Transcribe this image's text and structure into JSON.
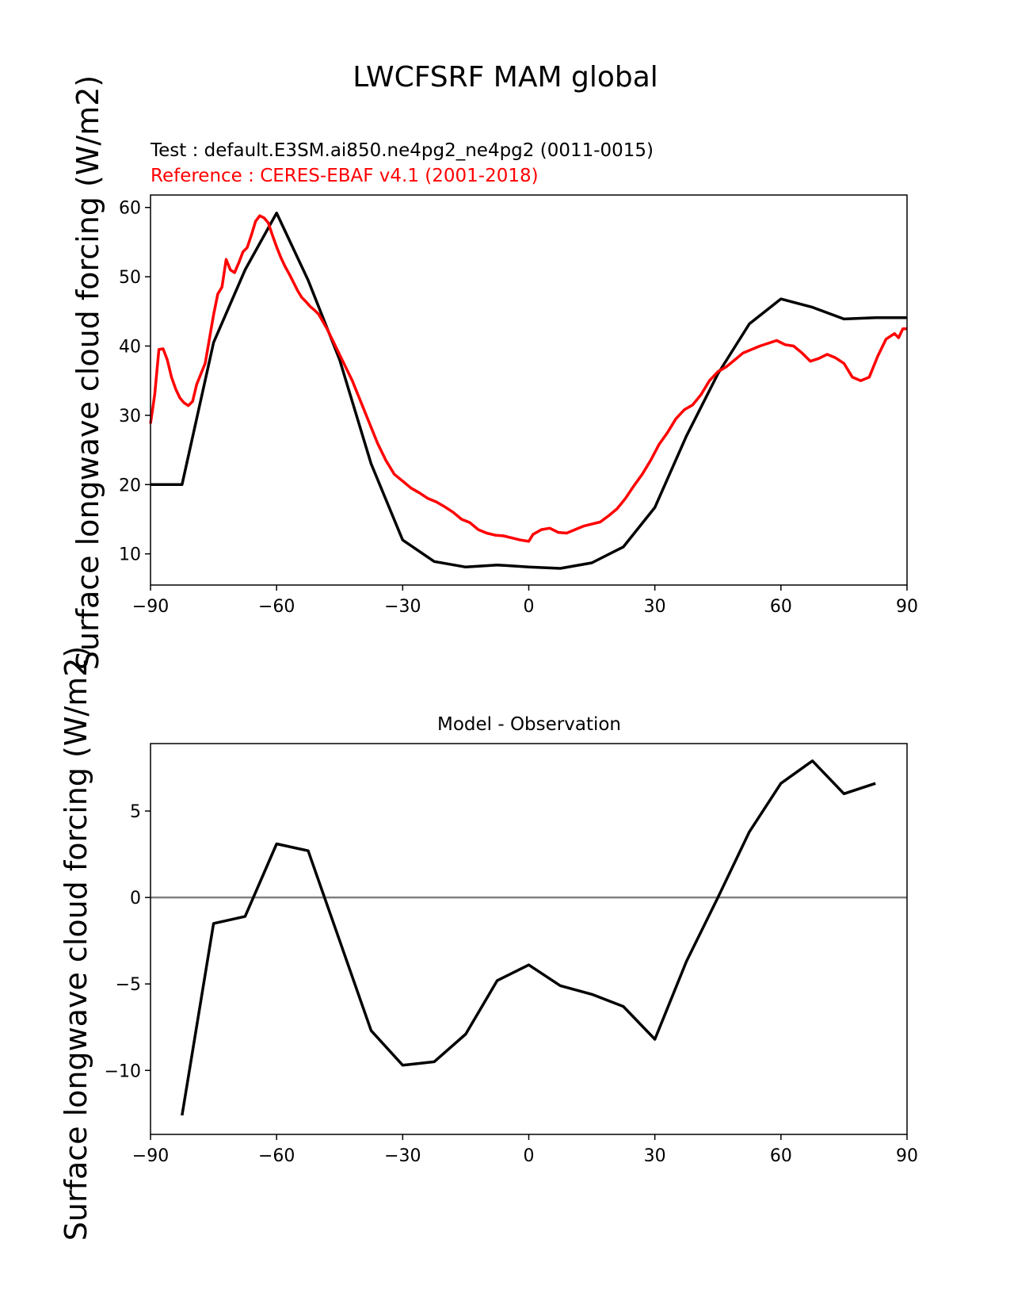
{
  "figure": {
    "title": "LWCFSRF MAM global",
    "test_label": "Test : default.E3SM.ai850.ne4pg2_ne4pg2 (0011-0015)",
    "reference_label": "Reference : CERES-EBAF v4.1 (2001-2018)",
    "ylabel": "Surface longwave cloud forcing (W/m2)"
  },
  "colors": {
    "test": "#000000",
    "reference": "#ff0000",
    "zero_line": "#808080",
    "frame": "#000000"
  },
  "chart_data": [
    {
      "type": "line",
      "title": "",
      "xlabel": "",
      "ylabel": "Surface longwave cloud forcing (W/m2)",
      "xlim": [
        -90,
        90
      ],
      "ylim": [
        5.5,
        61.8
      ],
      "xticks": [
        -90,
        -60,
        -30,
        0,
        30,
        60,
        90
      ],
      "xtick_labels": [
        "−90",
        "−60",
        "−30",
        "0",
        "30",
        "60",
        "90"
      ],
      "yticks": [
        10,
        20,
        30,
        40,
        50,
        60
      ],
      "ytick_labels": [
        "10",
        "20",
        "30",
        "40",
        "50",
        "60"
      ],
      "grid": false,
      "series": [
        {
          "name": "Test : default.E3SM.ai850.ne4pg2_ne4pg2 (0011-0015)",
          "color": "#000000",
          "x": [
            -90,
            -82.5,
            -75,
            -67.5,
            -60,
            -52.5,
            -45,
            -37.5,
            -30,
            -22.5,
            -15,
            -7.5,
            0,
            7.5,
            15,
            22.5,
            30,
            37.5,
            45,
            52.5,
            60,
            67.5,
            75,
            82.5,
            90
          ],
          "y": [
            20.0,
            20.0,
            40.5,
            51.0,
            59.2,
            49.5,
            38.0,
            23.0,
            12.0,
            8.9,
            8.1,
            8.4,
            8.1,
            7.9,
            8.7,
            11.0,
            16.7,
            27.0,
            36.0,
            43.2,
            46.8,
            45.6,
            43.9,
            44.1,
            44.1
          ]
        },
        {
          "name": "Reference : CERES-EBAF v4.1 (2001-2018)",
          "color": "#ff0000",
          "x": [
            -90,
            -89,
            -88,
            -87,
            -86,
            -85,
            -84,
            -83,
            -82,
            -81,
            -80,
            -79,
            -78,
            -77,
            -76,
            -75,
            -74,
            -73,
            -72,
            -71,
            -70,
            -69,
            -68,
            -67,
            -66,
            -65,
            -64,
            -63,
            -62,
            -61,
            -60,
            -59,
            -58,
            -57,
            -56,
            -55,
            -54,
            -53,
            -52,
            -51,
            -50,
            -48,
            -46,
            -44,
            -42,
            -40,
            -38,
            -36,
            -34,
            -32,
            -30,
            -28,
            -26,
            -24,
            -22,
            -20,
            -18,
            -16,
            -14,
            -12,
            -10,
            -8,
            -6,
            -4,
            -2,
            0,
            1,
            3,
            5,
            7,
            9,
            11,
            13,
            15,
            17,
            19,
            21,
            23,
            25,
            27,
            29,
            31,
            33,
            35,
            37,
            39,
            41,
            43,
            45,
            47,
            49,
            51,
            53,
            55,
            57,
            59,
            61,
            63,
            65,
            67,
            69,
            71,
            73,
            75,
            77,
            79,
            81,
            83,
            85,
            87,
            88,
            89,
            90
          ],
          "y": [
            28.8,
            33.0,
            39.5,
            39.6,
            38.0,
            35.5,
            33.8,
            32.5,
            31.8,
            31.4,
            32.0,
            34.5,
            36.0,
            37.5,
            41.0,
            44.5,
            47.5,
            48.5,
            52.5,
            51.0,
            50.6,
            52.0,
            53.6,
            54.2,
            56.0,
            58.0,
            58.8,
            58.5,
            57.8,
            56.0,
            54.3,
            52.8,
            51.5,
            50.4,
            49.2,
            48.0,
            47.0,
            46.4,
            45.7,
            45.2,
            44.6,
            42.5,
            40.0,
            37.5,
            35.0,
            32.0,
            29.0,
            26.0,
            23.5,
            21.5,
            20.5,
            19.5,
            18.8,
            18.0,
            17.5,
            16.8,
            16.0,
            15.0,
            14.5,
            13.5,
            13.0,
            12.7,
            12.6,
            12.3,
            12.0,
            11.8,
            12.8,
            13.5,
            13.7,
            13.1,
            13.0,
            13.5,
            14.0,
            14.3,
            14.6,
            15.5,
            16.5,
            18.0,
            19.8,
            21.5,
            23.5,
            25.8,
            27.5,
            29.5,
            30.8,
            31.5,
            33.0,
            35.0,
            36.3,
            37.0,
            38.0,
            39.0,
            39.5,
            40.0,
            40.4,
            40.8,
            40.2,
            40.0,
            39.0,
            37.8,
            38.2,
            38.8,
            38.3,
            37.5,
            35.5,
            35.0,
            35.5,
            38.5,
            41.0,
            41.8,
            41.2,
            42.5,
            42.5
          ]
        }
      ]
    },
    {
      "type": "line",
      "title": "Model - Observation",
      "xlabel": "",
      "ylabel": "Surface longwave cloud forcing (W/m2)",
      "xlim": [
        -90,
        90
      ],
      "ylim": [
        -13.7,
        8.9
      ],
      "xticks": [
        -90,
        -60,
        -30,
        0,
        30,
        60,
        90
      ],
      "xtick_labels": [
        "−90",
        "−60",
        "−30",
        "0",
        "30",
        "60",
        "90"
      ],
      "yticks": [
        -10,
        -5,
        0,
        5
      ],
      "ytick_labels": [
        "−10",
        "−5",
        "0",
        "5"
      ],
      "zero_line": 0,
      "grid": false,
      "series": [
        {
          "color": "#000000",
          "x": [
            -82.5,
            -75,
            -67.5,
            -60,
            -52.5,
            -45,
            -37.5,
            -30,
            -22.5,
            -15,
            -7.5,
            0,
            7.5,
            15,
            22.5,
            30,
            37.5,
            45,
            52.5,
            60,
            67.5,
            75,
            82.5
          ],
          "y": [
            -12.6,
            -1.5,
            -1.1,
            3.1,
            2.7,
            -2.5,
            -7.7,
            -9.7,
            -9.5,
            -7.9,
            -4.8,
            -3.9,
            -5.1,
            -5.6,
            -6.3,
            -8.2,
            -3.7,
            0.0,
            3.8,
            6.6,
            7.9,
            6.0,
            6.6
          ]
        }
      ]
    }
  ]
}
